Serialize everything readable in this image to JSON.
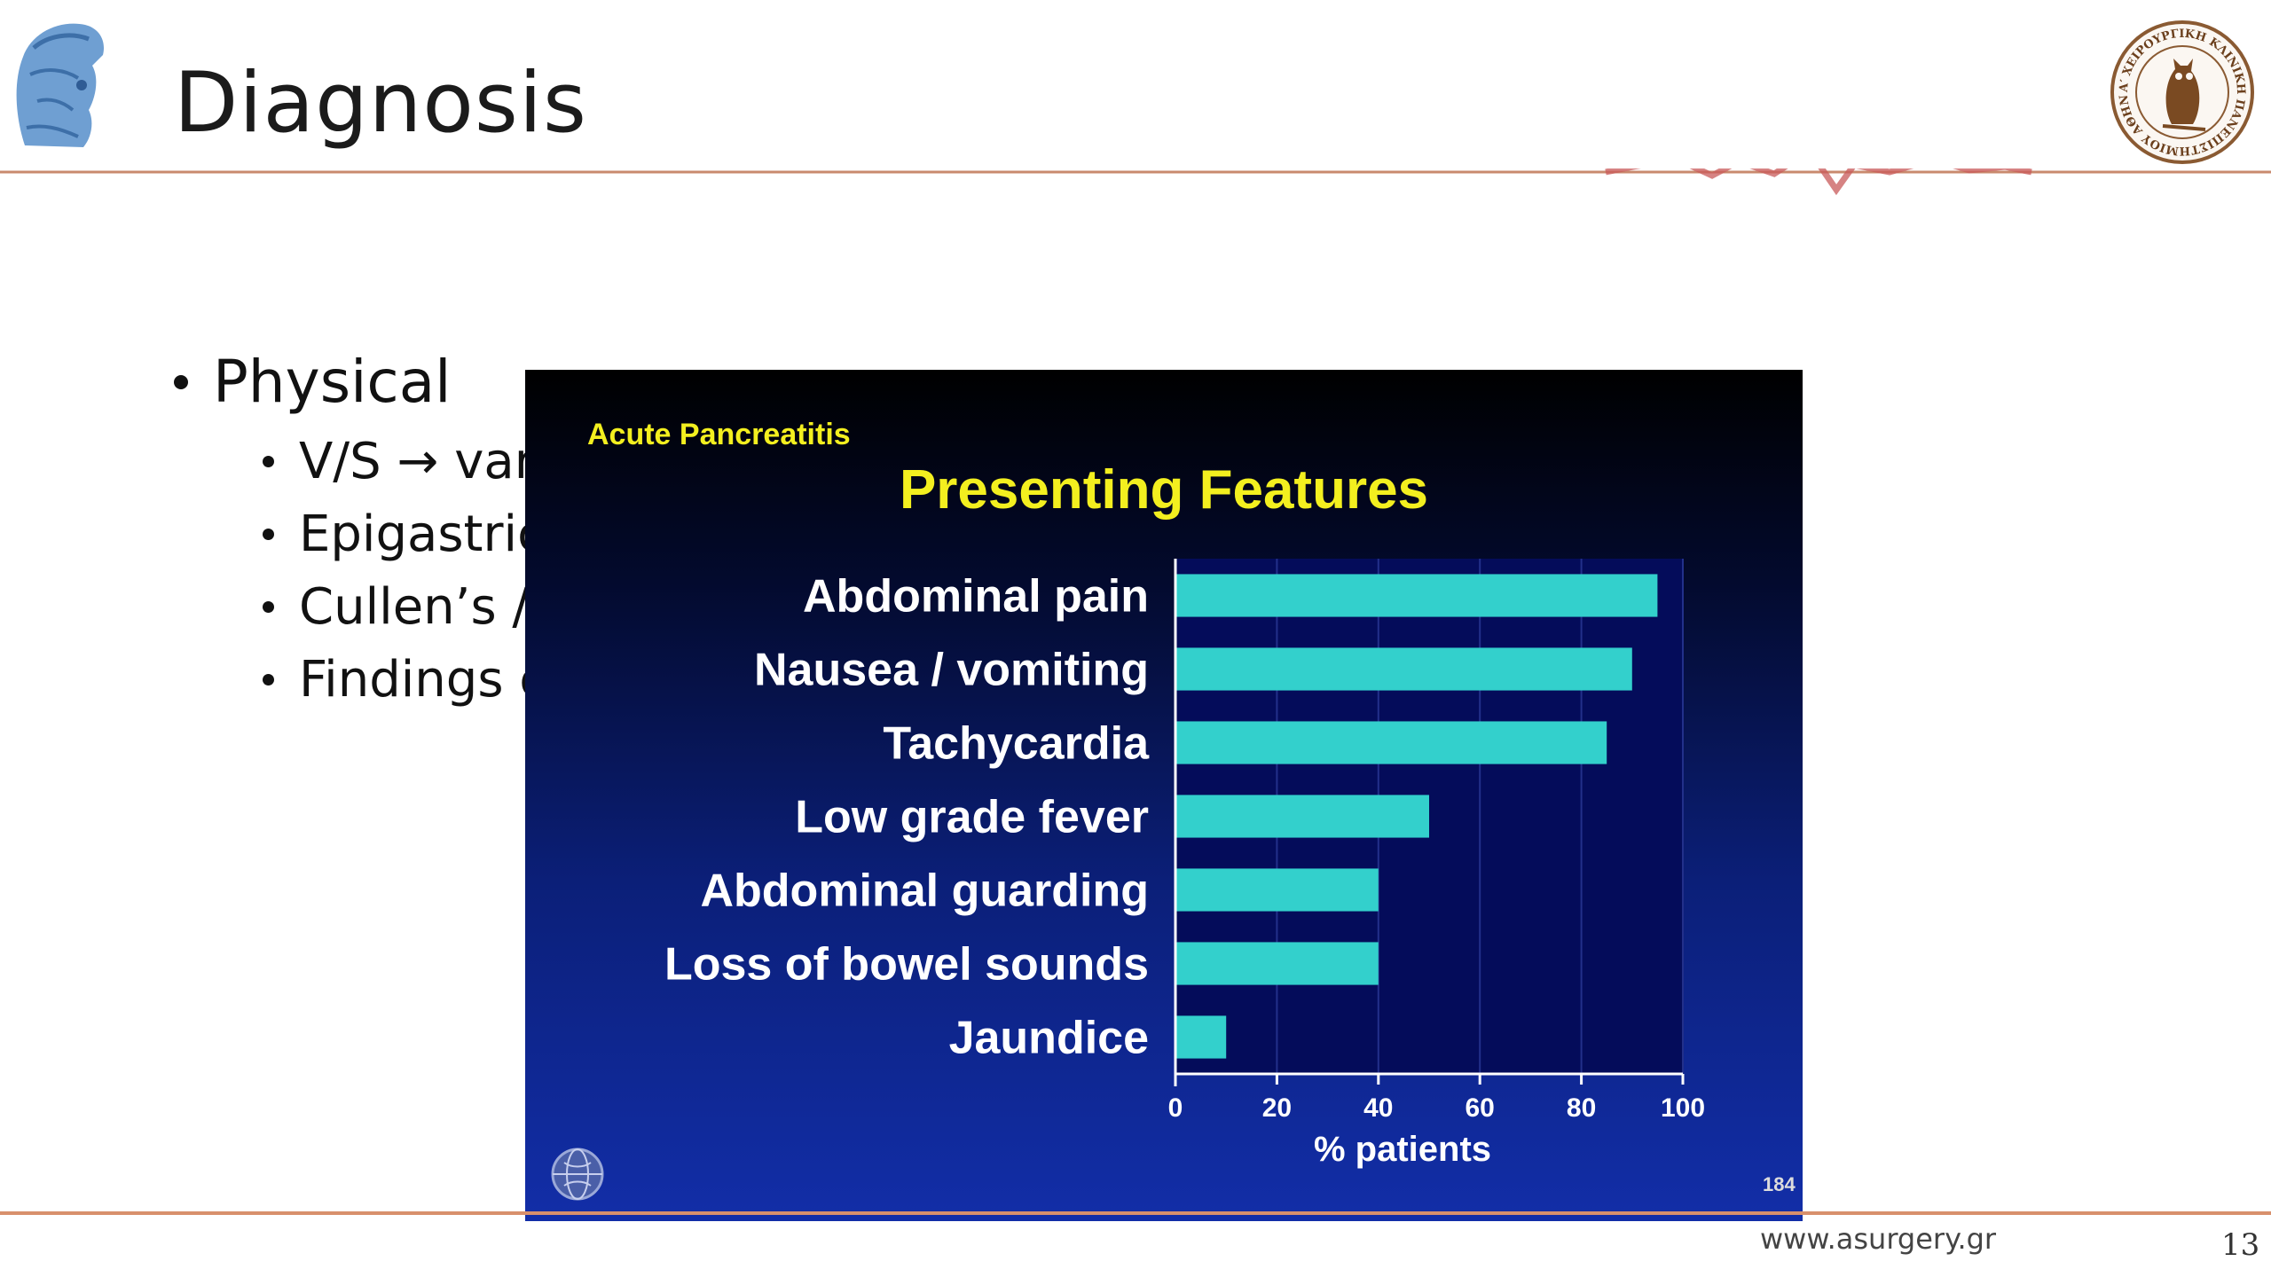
{
  "slide": {
    "title": "Diagnosis",
    "bullets": {
      "level1": "Physical",
      "level2": [
        "V/S → var",
        "Epigastric",
        "Cullen’s /",
        "Findings c"
      ]
    },
    "footer_url": "www.asurgery.gr",
    "page_number": "13",
    "logos": {
      "left": "athena-head-logo",
      "right": "owl-seal-logo"
    },
    "seal_text": "Α′ ΧΕΙΡΟΥΡΓΙΚΗ ΚΛΙΝΙΚΗ ΠΑΝΕΠΙΣΤΗΜΙΟΥ ΑΘΗΝΩΝ"
  },
  "inset": {
    "kicker": "Acute Pancreatitis",
    "slide_id": "184",
    "icon": "globe-icon"
  },
  "chart_data": {
    "type": "bar",
    "orientation": "horizontal",
    "title": "Presenting Features",
    "subtitle": "Acute Pancreatitis",
    "categories": [
      "Abdominal pain",
      "Nausea / vomiting",
      "Tachycardia",
      "Low grade fever",
      "Abdominal guarding",
      "Loss of bowel sounds",
      "Jaundice"
    ],
    "values": [
      95,
      90,
      85,
      50,
      40,
      40,
      10
    ],
    "xlabel": "% patients",
    "ylabel": "",
    "xlim": [
      0,
      100
    ],
    "xticks": [
      0,
      20,
      40,
      60,
      80,
      100
    ],
    "grid": true,
    "legend": "none",
    "colors": {
      "bar": "#33d0cc",
      "plot_bg": "#040c5a",
      "title": "#f3ef1f"
    }
  }
}
